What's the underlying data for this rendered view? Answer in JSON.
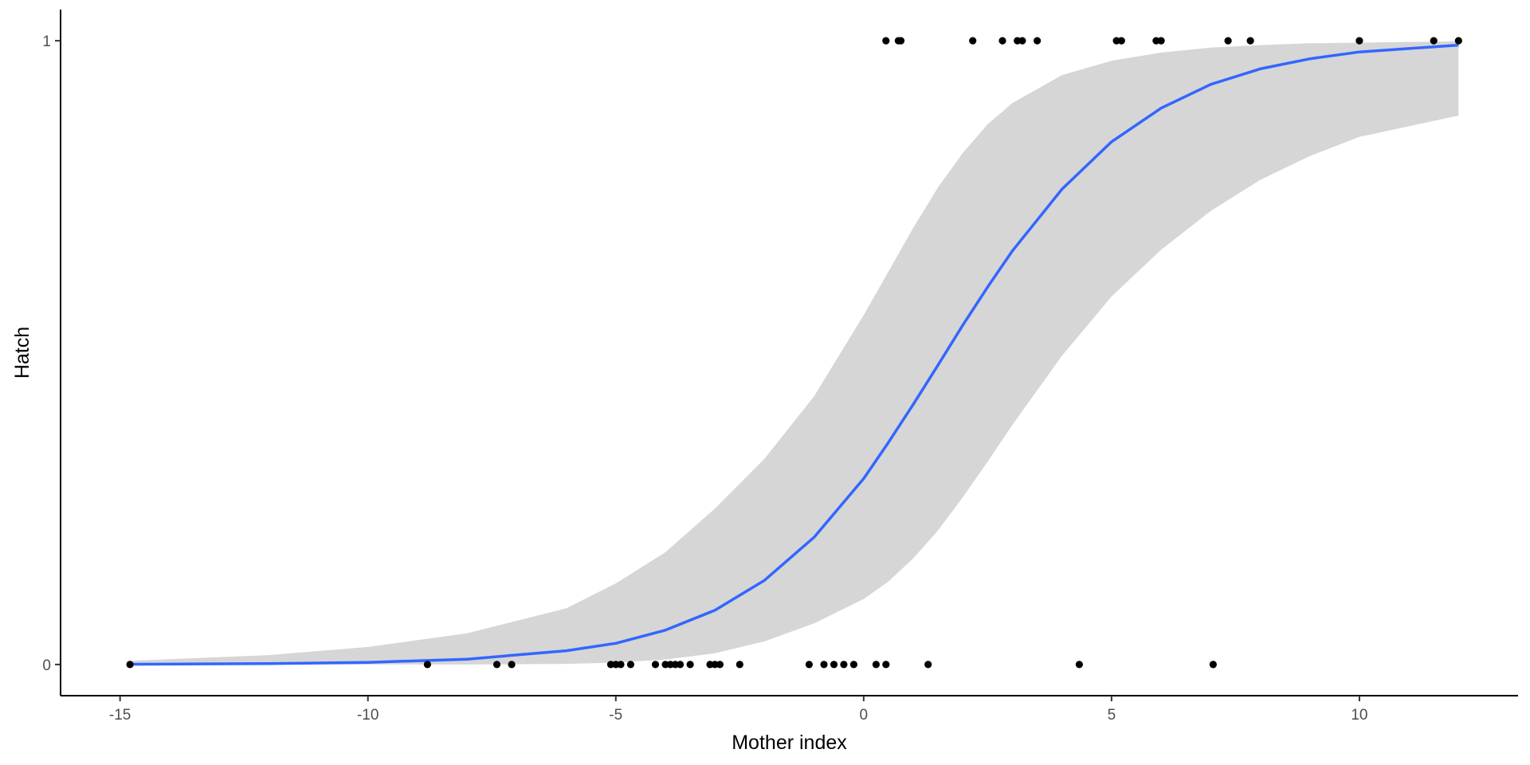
{
  "chart_data": {
    "type": "scatter",
    "title": "",
    "xlabel": "Mother index",
    "ylabel": "Hatch",
    "xlim": [
      -16.2,
      13.2
    ],
    "ylim": [
      -0.05,
      1.05
    ],
    "x_ticks": [
      -15,
      -10,
      -5,
      0,
      5,
      10
    ],
    "x_tick_labels": [
      "-15",
      "-10",
      "-5",
      "0",
      "5",
      "10"
    ],
    "y_ticks": [
      0,
      1
    ],
    "y_tick_labels": [
      "0",
      "1"
    ],
    "grid": false,
    "legend": "none",
    "colors": {
      "points": "#000000",
      "fit_line": "#3366ff",
      "ribbon": "#d6d6d6"
    },
    "points": [
      {
        "x": -14.8,
        "y": 0
      },
      {
        "x": -8.8,
        "y": 0
      },
      {
        "x": -7.4,
        "y": 0
      },
      {
        "x": -7.1,
        "y": 0
      },
      {
        "x": -5.1,
        "y": 0
      },
      {
        "x": -5.0,
        "y": 0
      },
      {
        "x": -4.9,
        "y": 0
      },
      {
        "x": -4.7,
        "y": 0
      },
      {
        "x": -4.2,
        "y": 0
      },
      {
        "x": -4.0,
        "y": 0
      },
      {
        "x": -3.9,
        "y": 0
      },
      {
        "x": -3.8,
        "y": 0
      },
      {
        "x": -3.7,
        "y": 0
      },
      {
        "x": -3.5,
        "y": 0
      },
      {
        "x": -3.1,
        "y": 0
      },
      {
        "x": -3.0,
        "y": 0
      },
      {
        "x": -2.9,
        "y": 0
      },
      {
        "x": -2.5,
        "y": 0
      },
      {
        "x": -1.1,
        "y": 0
      },
      {
        "x": -0.8,
        "y": 0
      },
      {
        "x": -0.6,
        "y": 0
      },
      {
        "x": -0.4,
        "y": 0
      },
      {
        "x": -0.2,
        "y": 0
      },
      {
        "x": 0.25,
        "y": 0
      },
      {
        "x": 0.45,
        "y": 0
      },
      {
        "x": 1.3,
        "y": 0
      },
      {
        "x": 4.35,
        "y": 0
      },
      {
        "x": 7.05,
        "y": 0
      },
      {
        "x": 0.45,
        "y": 1
      },
      {
        "x": 0.7,
        "y": 1
      },
      {
        "x": 0.75,
        "y": 1
      },
      {
        "x": 2.2,
        "y": 1
      },
      {
        "x": 2.8,
        "y": 1
      },
      {
        "x": 3.1,
        "y": 1
      },
      {
        "x": 3.2,
        "y": 1
      },
      {
        "x": 3.5,
        "y": 1
      },
      {
        "x": 5.1,
        "y": 1
      },
      {
        "x": 5.2,
        "y": 1
      },
      {
        "x": 5.9,
        "y": 1
      },
      {
        "x": 6.0,
        "y": 1
      },
      {
        "x": 7.35,
        "y": 1
      },
      {
        "x": 7.8,
        "y": 1
      },
      {
        "x": 10.0,
        "y": 1
      },
      {
        "x": 11.5,
        "y": 1
      },
      {
        "x": 12.0,
        "y": 1
      }
    ],
    "fit": {
      "x": [
        -14.8,
        -12,
        -10,
        -8,
        -6,
        -5,
        -4,
        -3,
        -2,
        -1,
        0,
        0.5,
        1,
        1.5,
        2,
        2.5,
        3,
        4,
        5,
        6,
        7,
        8,
        9,
        10,
        12
      ],
      "y": [
        0.0004,
        0.0013,
        0.0034,
        0.0085,
        0.022,
        0.034,
        0.055,
        0.087,
        0.135,
        0.204,
        0.298,
        0.356,
        0.417,
        0.48,
        0.544,
        0.605,
        0.663,
        0.762,
        0.838,
        0.892,
        0.93,
        0.955,
        0.971,
        0.982,
        0.993
      ],
      "lower": [
        0.0,
        0.0,
        0.0,
        0.0,
        0.001,
        0.003,
        0.008,
        0.018,
        0.037,
        0.066,
        0.105,
        0.133,
        0.17,
        0.215,
        0.268,
        0.325,
        0.384,
        0.495,
        0.59,
        0.665,
        0.727,
        0.777,
        0.815,
        0.846,
        0.88
      ],
      "upper": [
        0.006,
        0.015,
        0.028,
        0.05,
        0.09,
        0.13,
        0.18,
        0.25,
        0.33,
        0.43,
        0.56,
        0.63,
        0.7,
        0.765,
        0.82,
        0.866,
        0.9,
        0.945,
        0.968,
        0.981,
        0.989,
        0.993,
        0.996,
        0.997,
        0.999
      ]
    }
  }
}
